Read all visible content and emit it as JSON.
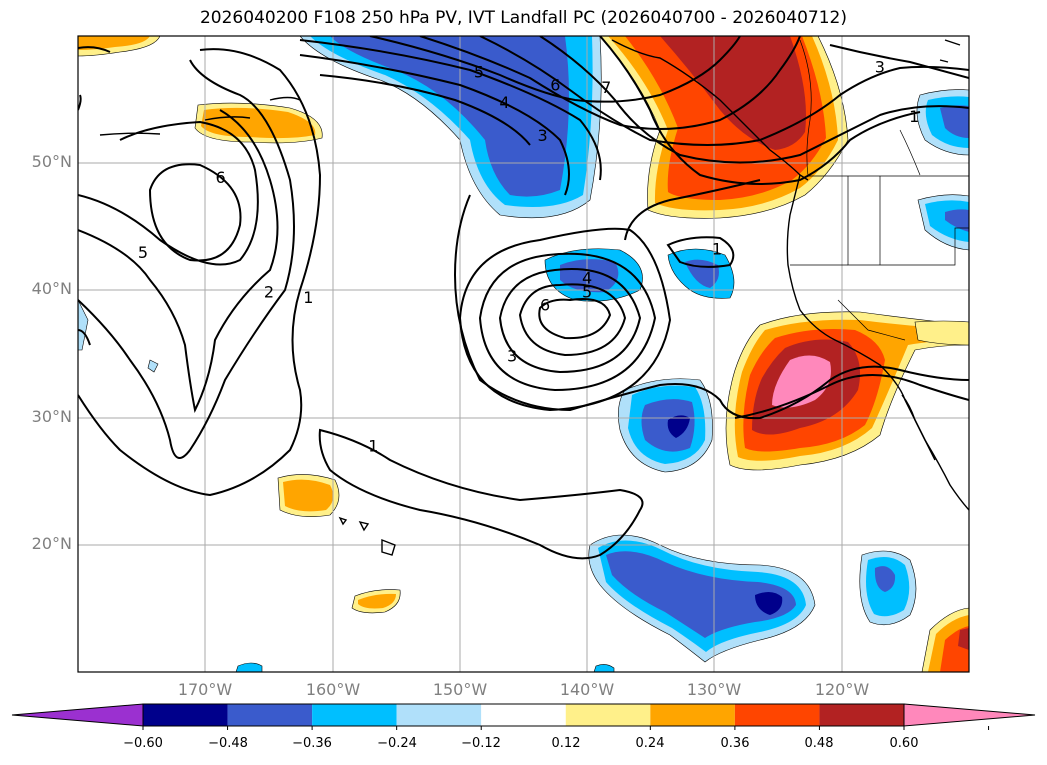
{
  "title": "2026040200 F108 250 hPa PV, IVT Landfall PC (2026040700 - 2026040712)",
  "lat_labels": [
    {
      "value": 50,
      "text": "50°N"
    },
    {
      "value": 40,
      "text": "40°N"
    },
    {
      "value": 30,
      "text": "30°N"
    },
    {
      "value": 20,
      "text": "20°N"
    }
  ],
  "lon_labels": [
    {
      "value": -170,
      "text": "170°W"
    },
    {
      "value": -160,
      "text": "160°W"
    },
    {
      "value": -150,
      "text": "150°W"
    },
    {
      "value": -140,
      "text": "140°W"
    },
    {
      "value": -130,
      "text": "130°W"
    },
    {
      "value": -120,
      "text": "120°W"
    }
  ],
  "colorbar": {
    "levels": [
      "−0.60",
      "−0.48",
      "−0.36",
      "−0.24",
      "−0.12",
      "0.12",
      "0.24",
      "0.36",
      "0.48",
      "0.60"
    ],
    "colors": [
      "#9b30d0",
      "#00008b",
      "#3a5bcc",
      "#00bfff",
      "#b0e0fa",
      "#ffffff",
      "#fff08a",
      "#ffa500",
      "#ff4500",
      "#b22222",
      "#ff88bb"
    ]
  },
  "contour_labels": [
    {
      "text": "5",
      "lon": -148.5,
      "lat": 57.2
    },
    {
      "text": "6",
      "lon": -142.5,
      "lat": 56.2
    },
    {
      "text": "7",
      "lon": -138.5,
      "lat": 56.0
    },
    {
      "text": "4",
      "lon": -146.5,
      "lat": 54.8
    },
    {
      "text": "3",
      "lon": -143.5,
      "lat": 52.2
    },
    {
      "text": "3",
      "lon": -117.0,
      "lat": 57.6
    },
    {
      "text": "1",
      "lon": -114.3,
      "lat": 53.7
    },
    {
      "text": "6",
      "lon": -168.8,
      "lat": 48.9
    },
    {
      "text": "5",
      "lon": -174.9,
      "lat": 43.0
    },
    {
      "text": "2",
      "lon": -165.0,
      "lat": 39.9
    },
    {
      "text": "1",
      "lon": -161.9,
      "lat": 39.5
    },
    {
      "text": "4",
      "lon": -140.0,
      "lat": 41.0
    },
    {
      "text": "5",
      "lon": -140.0,
      "lat": 39.9
    },
    {
      "text": "6",
      "lon": -143.3,
      "lat": 38.9
    },
    {
      "text": "3",
      "lon": -145.9,
      "lat": 34.9
    },
    {
      "text": "1",
      "lon": -129.8,
      "lat": 43.3
    },
    {
      "text": "1",
      "lon": -156.8,
      "lat": 27.8
    }
  ]
}
